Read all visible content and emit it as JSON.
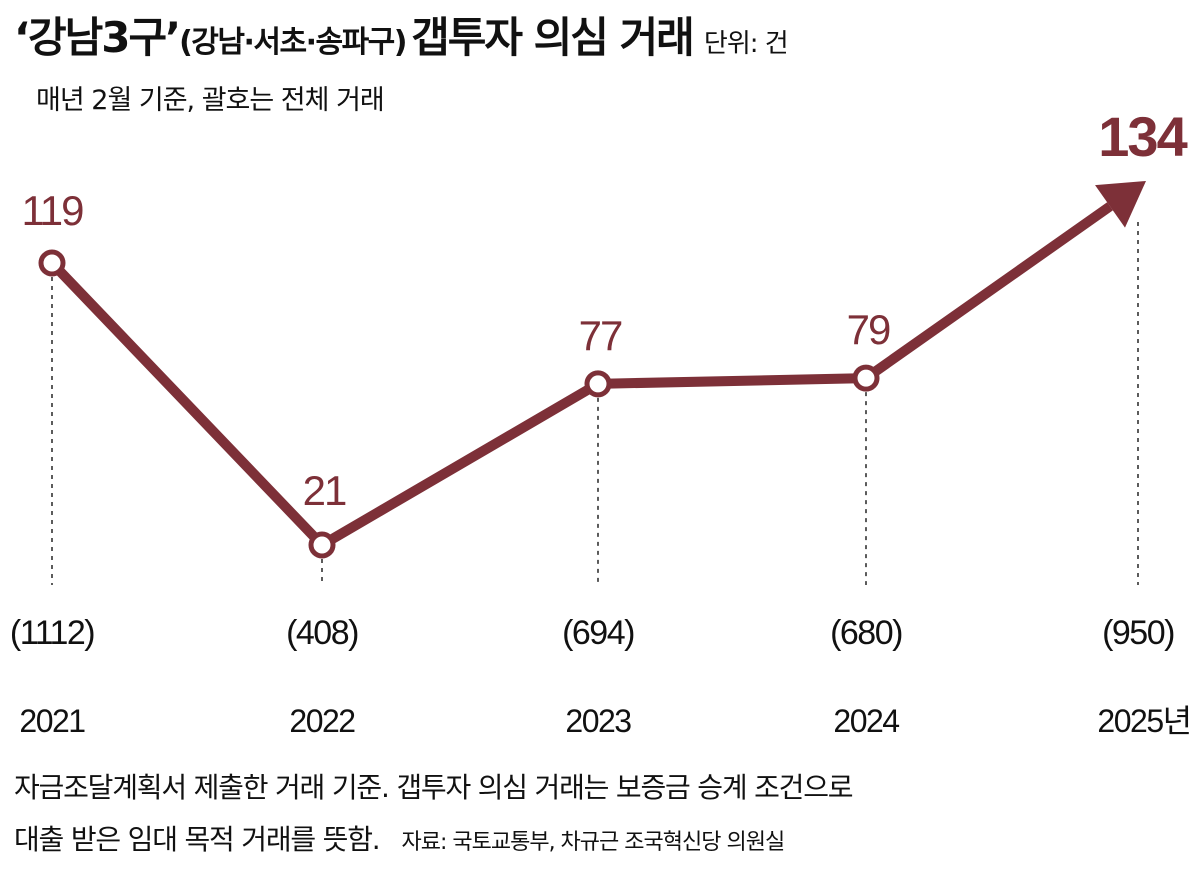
{
  "header": {
    "title_main": "‘강남3구’",
    "title_paren": "(강남·서초·송파구)",
    "title_rest": "갭투자 의심 거래",
    "unit": "단위: 건",
    "subtitle": "매년 2월 기준, 괄호는 전체 거래"
  },
  "chart_data": {
    "type": "line",
    "title": "‘강남3구’(강남·서초·송파구) 갭투자 의심 거래",
    "subtitle": "매년 2월 기준, 괄호는 전체 거래",
    "unit": "건",
    "categories": [
      "2021",
      "2022",
      "2023",
      "2024",
      "2025년"
    ],
    "series": [
      {
        "name": "갭투자 의심 거래",
        "values": [
          119,
          21,
          77,
          79,
          134
        ]
      }
    ],
    "value_labels": [
      "119",
      "21",
      "77",
      "79",
      "134"
    ],
    "total_labels": [
      "(1112)",
      "(408)",
      "(694)",
      "(680)",
      "(950)"
    ],
    "total_trades": [
      1112,
      408,
      694,
      680,
      950
    ],
    "line_color": "#7d3038",
    "last_point_style": "arrow"
  },
  "footer": {
    "line1": "자금조달계획서 제출한 거래 기준. 갭투자 의심 거래는 보증금 승계 조건으로",
    "line2": "대출 받은 임대 목적 거래를 뜻함.",
    "source": "자료: 국토교통부, 차규근 조국혁신당 의원실"
  }
}
